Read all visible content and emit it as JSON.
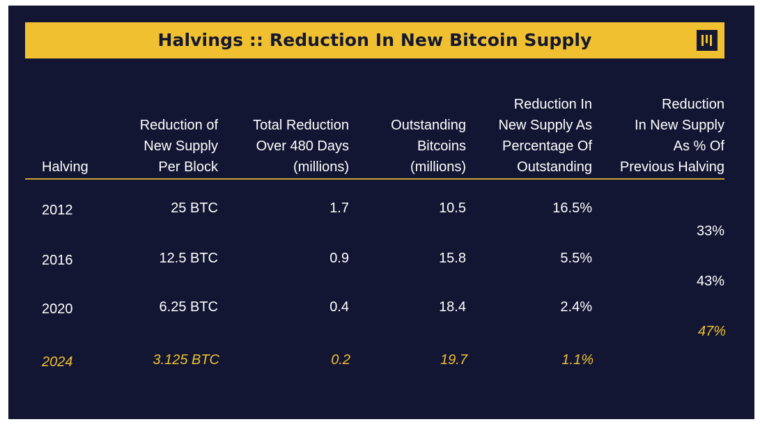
{
  "title": "Halvings :: Reduction In New Bitcoin Supply",
  "colors": {
    "background": "#121632",
    "accent": "#f0c030",
    "text": "#ffffff"
  },
  "icons": {
    "brand": "pantera-logo-icon"
  },
  "chart_data": {
    "type": "table",
    "title": "Halvings :: Reduction In New Bitcoin Supply",
    "columns": [
      "Halving",
      "Reduction of New Supply Per Block",
      "Total Reduction Over 480 Days (millions)",
      "Outstanding Bitcoins (millions)",
      "Reduction In New Supply As Percentage Of Outstanding",
      "Reduction In New Supply As % Of Previous Halving"
    ],
    "header_lines": [
      [
        "Halving"
      ],
      [
        "Reduction of",
        "New Supply",
        "Per Block"
      ],
      [
        "Total Reduction",
        "Over 480 Days",
        "(millions)"
      ],
      [
        "Outstanding",
        "Bitcoins",
        "(millions)"
      ],
      [
        "Reduction In",
        "New Supply As",
        "Percentage Of",
        "Outstanding"
      ],
      [
        "Reduction",
        "In New Supply",
        "As % Of",
        "Previous Halving"
      ]
    ],
    "rows": [
      {
        "halving": "2012",
        "reduction_per_block": "25 BTC",
        "total_reduction": "1.7",
        "outstanding": "10.5",
        "pct_outstanding": "16.5%"
      },
      {
        "halving": "2016",
        "reduction_per_block": "12.5 BTC",
        "total_reduction": "0.9",
        "outstanding": "15.8",
        "pct_outstanding": "5.5%"
      },
      {
        "halving": "2020",
        "reduction_per_block": "6.25 BTC",
        "total_reduction": "0.4",
        "outstanding": "18.4",
        "pct_outstanding": "2.4%"
      },
      {
        "halving": "2024",
        "reduction_per_block": "3.125 BTC",
        "total_reduction": "0.2",
        "outstanding": "19.7",
        "pct_outstanding": "1.1%"
      }
    ],
    "between_rows_pct_previous": [
      "33%",
      "43%",
      "47%"
    ],
    "projected_row": "2024",
    "projected_between": "47%"
  }
}
